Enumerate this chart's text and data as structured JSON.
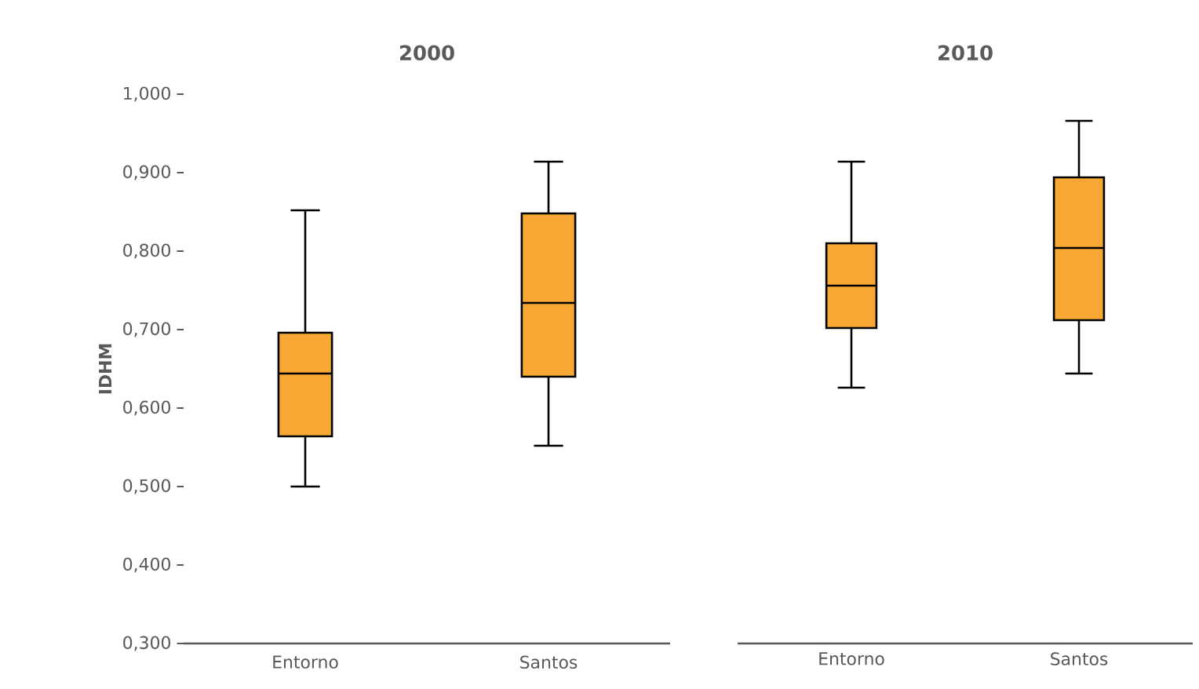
{
  "chart_data": [
    {
      "type": "box",
      "title": "2000",
      "ylabel": "IDHM",
      "categories": [
        "Entorno",
        "Santos"
      ],
      "color": "#f7a733",
      "boxes": [
        {
          "low": 0.5,
          "q1": 0.564,
          "median": 0.644,
          "q3": 0.696,
          "high": 0.852
        },
        {
          "low": 0.552,
          "q1": 0.64,
          "median": 0.734,
          "q3": 0.848,
          "high": 0.914
        }
      ],
      "ylim": [
        0.3,
        1.0
      ],
      "yticks": [
        {
          "value": 0.3,
          "label": "0,300"
        },
        {
          "value": 0.4,
          "label": "0,400"
        },
        {
          "value": 0.5,
          "label": "0,500"
        },
        {
          "value": 0.6,
          "label": "0,600"
        },
        {
          "value": 0.7,
          "label": "0,700"
        },
        {
          "value": 0.8,
          "label": "0,800"
        },
        {
          "value": 0.9,
          "label": "0,900"
        },
        {
          "value": 1.0,
          "label": "1,000"
        }
      ]
    },
    {
      "type": "box",
      "title": "2010",
      "categories": [
        "Entorno",
        "Santos"
      ],
      "color": "#f7a733",
      "boxes": [
        {
          "low": 0.626,
          "q1": 0.702,
          "median": 0.756,
          "q3": 0.81,
          "high": 0.914
        },
        {
          "low": 0.644,
          "q1": 0.712,
          "median": 0.804,
          "q3": 0.894,
          "high": 0.966
        }
      ],
      "ylim": [
        0.3,
        1.0
      ],
      "tick_labels": "x"
    }
  ]
}
